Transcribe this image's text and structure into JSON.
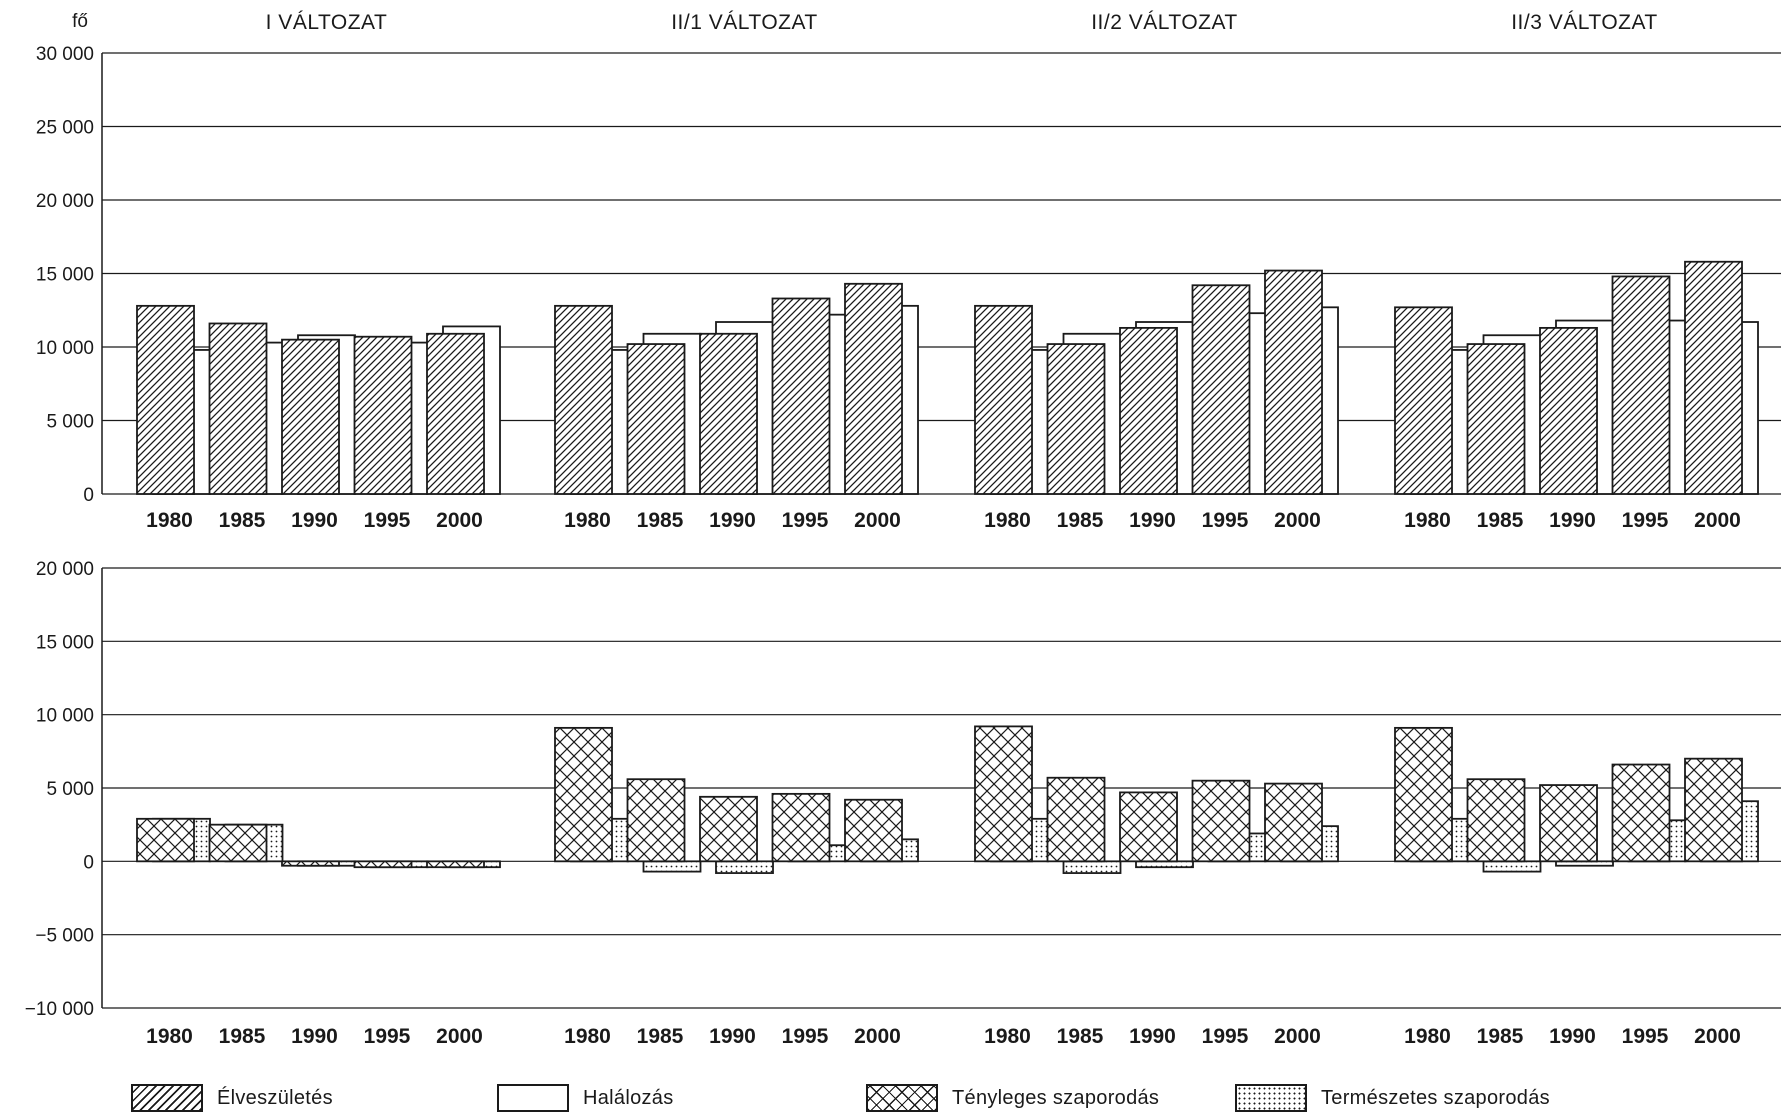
{
  "chart_data": [
    {
      "type": "bar",
      "ylabel": "fő",
      "ylim": [
        0,
        30000
      ],
      "yticks": [
        "0",
        "5 000",
        "10 000",
        "15 000",
        "20 000",
        "25 000",
        "30 000"
      ],
      "ytick_values": [
        0,
        5000,
        10000,
        15000,
        20000,
        25000,
        30000
      ],
      "grid": true,
      "categories": [
        "1980",
        "1985",
        "1990",
        "1995",
        "2000"
      ],
      "panels": [
        {
          "title": "I VÁLTOZAT",
          "series": [
            {
              "name": "Élveszületés",
              "values": [
                12800,
                11600,
                10500,
                10700,
                10900
              ]
            },
            {
              "name": "Halálozás",
              "values": [
                9800,
                10300,
                10800,
                10300,
                11400
              ]
            }
          ]
        },
        {
          "title": "II/1 VÁLTOZAT",
          "series": [
            {
              "name": "Élveszületés",
              "values": [
                12800,
                10200,
                10900,
                13300,
                14300
              ]
            },
            {
              "name": "Halálozás",
              "values": [
                9800,
                10900,
                11700,
                12200,
                12800
              ]
            }
          ]
        },
        {
          "title": "II/2 VÁLTOZAT",
          "series": [
            {
              "name": "Élveszületés",
              "values": [
                12800,
                10200,
                11300,
                14200,
                15200
              ]
            },
            {
              "name": "Halálozás",
              "values": [
                9800,
                10900,
                11700,
                12300,
                12700
              ]
            }
          ]
        },
        {
          "title": "II/3 VÁLTOZAT",
          "series": [
            {
              "name": "Élveszületés",
              "values": [
                12700,
                10200,
                11300,
                14800,
                15800
              ]
            },
            {
              "name": "Halálozás",
              "values": [
                9800,
                10800,
                11800,
                11800,
                11700
              ]
            }
          ]
        }
      ]
    },
    {
      "type": "bar",
      "ylim": [
        -10000,
        20000
      ],
      "yticks": [
        "−10 000",
        "−5 000",
        "0",
        "5 000",
        "10 000",
        "15 000",
        "20 000"
      ],
      "ytick_values": [
        -10000,
        -5000,
        0,
        5000,
        10000,
        15000,
        20000
      ],
      "grid": true,
      "categories": [
        "1980",
        "1985",
        "1990",
        "1995",
        "2000"
      ],
      "panels": [
        {
          "series": [
            {
              "name": "Tényleges szaporodás",
              "values": [
                2900,
                2500,
                -300,
                -400,
                -400
              ]
            },
            {
              "name": "Természetes szaporodás",
              "values": [
                2900,
                2500,
                -300,
                -400,
                -400
              ]
            }
          ]
        },
        {
          "series": [
            {
              "name": "Tényleges szaporodás",
              "values": [
                9100,
                5600,
                4400,
                4600,
                4200
              ]
            },
            {
              "name": "Természetes szaporodás",
              "values": [
                2900,
                -700,
                -800,
                1100,
                1500
              ]
            }
          ]
        },
        {
          "series": [
            {
              "name": "Tényleges szaporodás",
              "values": [
                9200,
                5700,
                4700,
                5500,
                5300
              ]
            },
            {
              "name": "Természetes szaporodás",
              "values": [
                2900,
                -800,
                -400,
                1900,
                2400
              ]
            }
          ]
        },
        {
          "series": [
            {
              "name": "Tényleges szaporodás",
              "values": [
                9100,
                5600,
                5200,
                6600,
                7000
              ]
            },
            {
              "name": "Természetes szaporodás",
              "values": [
                2900,
                -700,
                -300,
                2800,
                4100
              ]
            }
          ]
        }
      ]
    }
  ],
  "legend": {
    "items": [
      {
        "label": "Élveszületés",
        "pattern": "diagonal-hatch"
      },
      {
        "label": "Halálozás",
        "pattern": "blank"
      },
      {
        "label": "Tényleges szaporodás",
        "pattern": "crosshatch"
      },
      {
        "label": "Természetes szaporodás",
        "pattern": "dots"
      }
    ]
  },
  "colors": {
    "ink": "#1a1a1a",
    "background": "#ffffff"
  }
}
